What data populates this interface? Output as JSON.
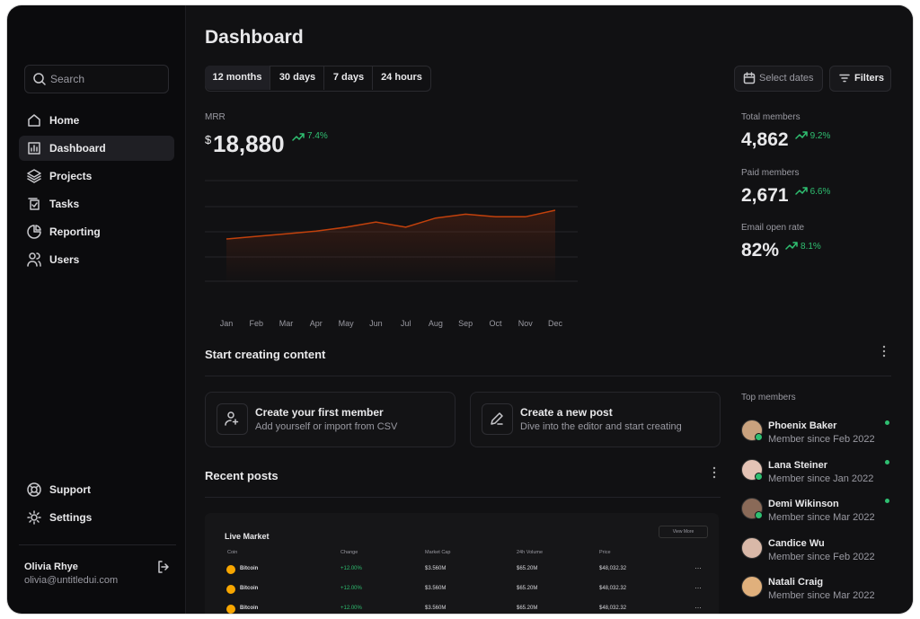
{
  "sidebar": {
    "search_placeholder": "Search",
    "nav": [
      "Home",
      "Dashboard",
      "Projects",
      "Tasks",
      "Reporting",
      "Users"
    ],
    "footer_nav": [
      "Support",
      "Settings"
    ],
    "user": {
      "name": "Olivia Rhye",
      "email": "olivia@untitledui.com"
    }
  },
  "header": {
    "title": "Dashboard",
    "tabs": [
      "12 months",
      "30 days",
      "7 days",
      "24 hours"
    ],
    "select_dates": "Select dates",
    "filters": "Filters"
  },
  "mrr": {
    "label": "MRR",
    "currency": "$",
    "value": "18,880",
    "change": "7.4%",
    "chart_data": {
      "type": "line",
      "categories": [
        "Jan",
        "Feb",
        "Mar",
        "Apr",
        "May",
        "Jun",
        "Jul",
        "Aug",
        "Sep",
        "Oct",
        "Nov",
        "Dec"
      ],
      "values": [
        42,
        44,
        46,
        48,
        51,
        55,
        51,
        58,
        61,
        59,
        59,
        64
      ],
      "color": "#c2410c"
    }
  },
  "stats": [
    {
      "label": "Total members",
      "value": "4,862",
      "change": "9.2%"
    },
    {
      "label": "Paid members",
      "value": "2,671",
      "change": "6.6%"
    },
    {
      "label": "Email open rate",
      "value": "82%",
      "change": "8.1%"
    }
  ],
  "content": {
    "title": "Start creating content",
    "cards": [
      {
        "title": "Create your first member",
        "subtitle": "Add yourself or import from CSV"
      },
      {
        "title": "Create a new post",
        "subtitle": "Dive into the editor and start creating"
      }
    ]
  },
  "recent_posts": {
    "title": "Recent posts",
    "market": {
      "title": "Live Market",
      "button": "View More",
      "columns": [
        "Coin",
        "Change",
        "Market Cap",
        "24h Volume",
        "Price"
      ],
      "rows": [
        [
          "Bitcoin",
          "+12.00%",
          "$3.560M",
          "$65.20M",
          "$48,032.32"
        ],
        [
          "Bitcoin",
          "+12.00%",
          "$3.560M",
          "$65.20M",
          "$48,032.32"
        ],
        [
          "Bitcoin",
          "+12.00%",
          "$3.560M",
          "$65.20M",
          "$48,032.32"
        ]
      ]
    }
  },
  "top_members": {
    "title": "Top members",
    "members": [
      {
        "name": "Phoenix Baker",
        "since": "Member since Feb 2022"
      },
      {
        "name": "Lana Steiner",
        "since": "Member since Jan 2022"
      },
      {
        "name": "Demi Wikinson",
        "since": "Member since Mar 2022"
      },
      {
        "name": "Candice Wu",
        "since": "Member since Feb 2022"
      },
      {
        "name": "Natali Craig",
        "since": "Member since Mar 2022"
      }
    ]
  }
}
